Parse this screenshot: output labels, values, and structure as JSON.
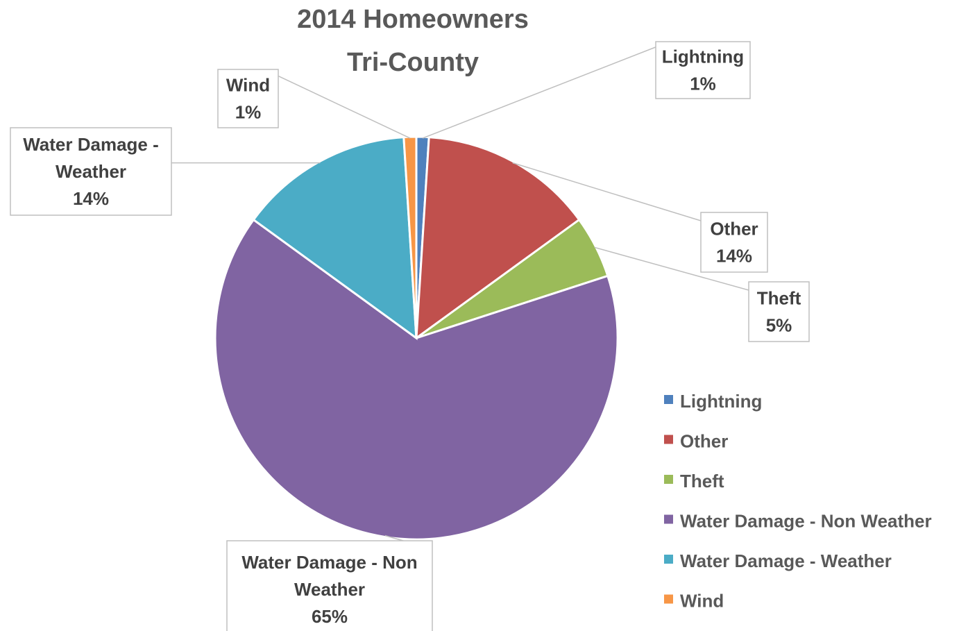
{
  "chart_data": {
    "type": "pie",
    "title": [
      "2014 Homeowners",
      "Tri-County"
    ],
    "legend_position": "right",
    "slices": [
      {
        "name": "Lightning",
        "value": 1,
        "label": [
          "Lightning",
          "1%"
        ],
        "color": "#4f81bd"
      },
      {
        "name": "Other",
        "value": 14,
        "label": [
          "Other",
          "14%"
        ],
        "color": "#c0504d"
      },
      {
        "name": "Theft",
        "value": 5,
        "label": [
          "Theft",
          "5%"
        ],
        "color": "#9bbb59"
      },
      {
        "name": "Water Damage - Non Weather",
        "value": 65,
        "label": [
          "Water Damage - Non",
          "Weather",
          "65%"
        ],
        "color": "#8064a2"
      },
      {
        "name": "Water Damage - Weather",
        "value": 14,
        "label": [
          "Water Damage -",
          "Weather",
          "14%"
        ],
        "color": "#4bacc6"
      },
      {
        "name": "Wind",
        "value": 1,
        "label": [
          "Wind",
          "1%"
        ],
        "color": "#f79646"
      }
    ]
  }
}
